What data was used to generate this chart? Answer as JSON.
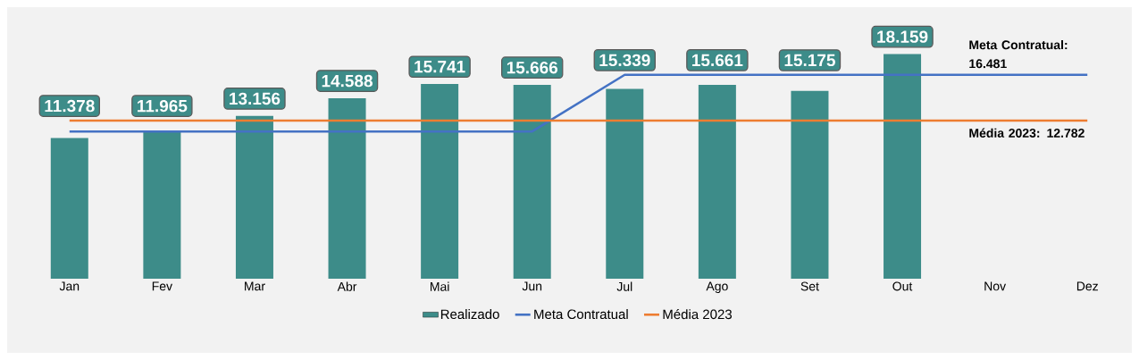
{
  "chart_data": {
    "type": "bar",
    "categories": [
      "Jan",
      "Fev",
      "Mar",
      "Abr",
      "Mai",
      "Jun",
      "Jul",
      "Ago",
      "Set",
      "Out",
      "Nov",
      "Dez"
    ],
    "series": [
      {
        "name": "Realizado",
        "color": "#3d8c89",
        "values": [
          11.378,
          11.965,
          13.156,
          14.588,
          15.741,
          15.666,
          15.339,
          15.661,
          15.175,
          18.159,
          null,
          null
        ],
        "value_labels": [
          "11.378",
          "11.965",
          "13.156",
          "14.588",
          "15.741",
          "15.666",
          "15.339",
          "15.661",
          "15.175",
          "18.159",
          null,
          null
        ]
      },
      {
        "name": "Meta Contratual",
        "type": "line",
        "color": "#4472c4",
        "values": [
          11.9,
          11.9,
          11.9,
          11.9,
          11.9,
          11.9,
          16.481,
          16.481,
          16.481,
          16.481,
          16.481,
          16.481
        ]
      },
      {
        "name": "Média 2023",
        "type": "line",
        "color": "#ed7d31",
        "values": [
          12.782,
          12.782,
          12.782,
          12.782,
          12.782,
          12.782,
          12.782,
          12.782,
          12.782,
          12.782,
          12.782,
          12.782
        ]
      }
    ],
    "annotations": [
      {
        "text": "Meta Contratual: 16.481",
        "x": "Dez",
        "y": 16.481
      },
      {
        "text": "Média 2023: 12.782",
        "x": "Dez",
        "y": 12.782
      }
    ],
    "tick_labels": "x",
    "legend": "bottom",
    "grid": false
  }
}
